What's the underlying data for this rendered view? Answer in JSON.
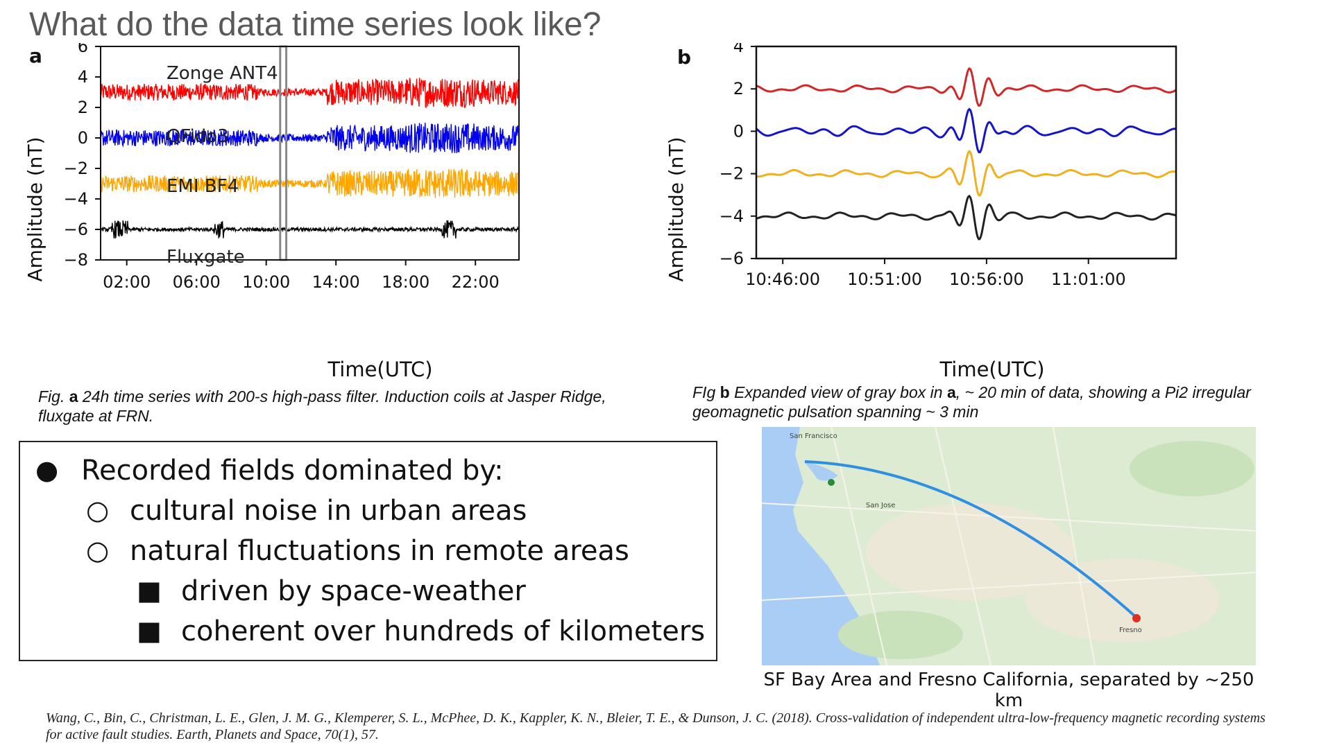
{
  "title": "What do the data time series look like?",
  "panel_a": {
    "letter": "a",
    "series_labels": [
      "Zonge ANT4",
      "QFido3",
      "EMI BF4",
      "Fluxgate"
    ],
    "caption_prefix": "Fig. ",
    "caption_bold": "a",
    "caption_text": " 24h time series with 200-s high-pass filter.  Induction coils at Jasper Ridge, fluxgate at FRN."
  },
  "panel_b": {
    "letter": "b",
    "caption_prefix": "FIg ",
    "caption_bold1": "b",
    "caption_mid": " Expanded view of gray box in ",
    "caption_bold2": "a",
    "caption_text": ", ~ 20 min of data, showing a Pi2 irregular geomagnetic pulsation spanning ~ 3 min"
  },
  "chart_data": [
    {
      "type": "line",
      "xlabel": "Time(UTC)",
      "ylabel": "Amplitude (nT)",
      "x_tick_labels": [
        "02:00",
        "06:00",
        "10:00",
        "14:00",
        "18:00",
        "22:00"
      ],
      "y_ticks": [
        6,
        4,
        2,
        0,
        -2,
        -4,
        -6,
        -8
      ],
      "xlim_hours": [
        0.5,
        24.5
      ],
      "ylim": [
        -8,
        6
      ],
      "highlight_box_hours": [
        10.8,
        11.15
      ],
      "series": [
        {
          "name": "Zonge ANT4",
          "offset": 3,
          "color": "#ff0000"
        },
        {
          "name": "QFido3",
          "offset": 0,
          "color": "#0000ee"
        },
        {
          "name": "EMI BF4",
          "offset": -3,
          "color": "#ffa500"
        },
        {
          "name": "Fluxgate",
          "offset": -6,
          "color": "#000000"
        }
      ]
    },
    {
      "type": "line",
      "xlabel": "Time(UTC)",
      "ylabel": "Amplitude (nT)",
      "x_tick_labels": [
        "10:46:00",
        "10:51:00",
        "10:56:00",
        "11:01:00"
      ],
      "y_ticks": [
        4,
        2,
        0,
        -2,
        -4,
        -6
      ],
      "xlim_minutes": [
        44.7,
        65.3
      ],
      "ylim": [
        -6,
        4
      ],
      "pulsation_center_minute": 55.4,
      "series": [
        {
          "name": "Zonge ANT4",
          "offset": 2,
          "color": "#d02828"
        },
        {
          "name": "QFido3",
          "offset": 0,
          "color": "#1515c8"
        },
        {
          "name": "EMI BF4",
          "offset": -2,
          "color": "#f0b020"
        },
        {
          "name": "Fluxgate",
          "offset": -4,
          "color": "#222222"
        }
      ]
    }
  ],
  "bullets": [
    {
      "level": 1,
      "marker": "●",
      "text": "Recorded fields dominated by:"
    },
    {
      "level": 2,
      "marker": "○",
      "text": "cultural noise in urban areas"
    },
    {
      "level": 2,
      "marker": "○",
      "text": "natural fluctuations in remote areas"
    },
    {
      "level": 3,
      "marker": "■",
      "text": "driven by space-weather"
    },
    {
      "level": 3,
      "marker": "■",
      "text": "coherent over hundreds of kilometers"
    }
  ],
  "map": {
    "caption": "SF Bay Area and Fresno California, separated by ~250 km",
    "labels": [
      "San Francisco",
      "San Jose",
      "Fresno"
    ]
  },
  "reference": "Wang, C., Bin, C., Christman, L. E., Glen, J. M. G., Klemperer, S. L., McPhee, D. K., Kappler, K. N., Bleier, T. E., & Dunson, J. C. (2018). Cross-validation of independent ultra-low-frequency magnetic recording systems for active fault studies. Earth, Planets and Space, 70(1), 57."
}
